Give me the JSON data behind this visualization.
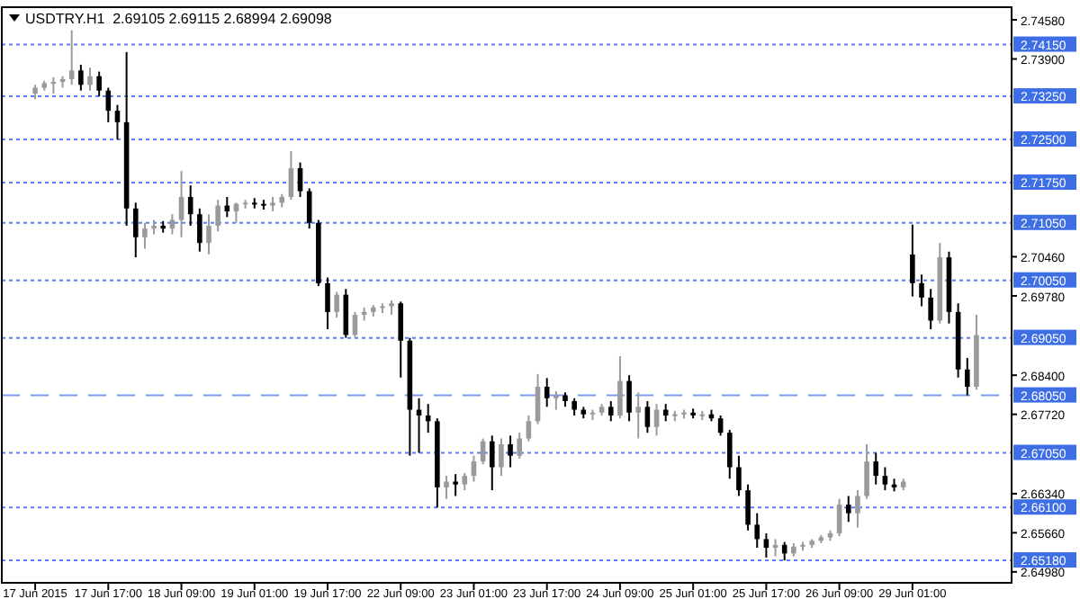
{
  "chart_data": {
    "type": "candlestick",
    "title": "USDTRY.H1  2.69105 2.69115 2.68994 2.69098",
    "categories": [
      "17 Jun 2015",
      null,
      null,
      null,
      null,
      null,
      null,
      null,
      "17 Jun 17:00",
      null,
      null,
      null,
      null,
      null,
      null,
      null,
      "18 Jun 09:00",
      null,
      null,
      null,
      null,
      null,
      null,
      null,
      "19 Jun 01:00",
      null,
      null,
      null,
      null,
      null,
      null,
      null,
      "19 Jun 17:00",
      null,
      null,
      null,
      null,
      null,
      null,
      null,
      "22 Jun 09:00",
      null,
      null,
      null,
      null,
      null,
      null,
      null,
      "23 Jun 01:00",
      null,
      null,
      null,
      null,
      null,
      null,
      null,
      "23 Jun 17:00",
      null,
      null,
      null,
      null,
      null,
      null,
      null,
      "24 Jun 09:00",
      null,
      null,
      null,
      null,
      null,
      null,
      null,
      "25 Jun 01:00",
      null,
      null,
      null,
      null,
      null,
      null,
      null,
      "25 Jun 17:00",
      null,
      null,
      null,
      null,
      null,
      null,
      null,
      "26 Jun 09:00",
      null,
      null,
      null,
      null,
      null,
      null,
      null,
      "29 Jun 01:00",
      null,
      null,
      null,
      null,
      null,
      null,
      null
    ],
    "ohlc": [
      [
        2.733,
        2.7345,
        2.732,
        2.734
      ],
      [
        2.734,
        2.7352,
        2.7335,
        2.7348
      ],
      [
        2.7348,
        2.7358,
        2.733,
        2.735
      ],
      [
        2.735,
        2.736,
        2.734,
        2.7355
      ],
      [
        2.7355,
        2.744,
        2.7345,
        2.737
      ],
      [
        2.737,
        2.738,
        2.7335,
        2.7345
      ],
      [
        2.7345,
        2.7375,
        2.7335,
        2.736
      ],
      [
        2.736,
        2.7368,
        2.7325,
        2.7335
      ],
      [
        2.7335,
        2.734,
        2.728,
        2.73
      ],
      [
        2.73,
        2.731,
        2.725,
        2.728
      ],
      [
        2.728,
        2.7402,
        2.71,
        2.713
      ],
      [
        2.713,
        2.714,
        2.7045,
        2.708
      ],
      [
        2.708,
        2.7105,
        2.706,
        2.7095
      ],
      [
        2.7095,
        2.711,
        2.7085,
        2.71
      ],
      [
        2.71,
        2.7108,
        2.7088,
        2.7095
      ],
      [
        2.7095,
        2.712,
        2.7085,
        2.711
      ],
      [
        2.711,
        2.7195,
        2.708,
        2.715
      ],
      [
        2.715,
        2.717,
        2.71,
        2.712
      ],
      [
        2.712,
        2.713,
        2.7055,
        2.707
      ],
      [
        2.707,
        2.712,
        2.705,
        2.71
      ],
      [
        2.71,
        2.7145,
        2.709,
        2.7135
      ],
      [
        2.7135,
        2.715,
        2.7115,
        2.7125
      ],
      [
        2.7125,
        2.714,
        2.7105,
        2.7138
      ],
      [
        2.7138,
        2.7145,
        2.713,
        2.714
      ],
      [
        2.714,
        2.7148,
        2.713,
        2.7138
      ],
      [
        2.7138,
        2.7145,
        2.7128,
        2.7135
      ],
      [
        2.7135,
        2.715,
        2.7125,
        2.714
      ],
      [
        2.714,
        2.7155,
        2.7132,
        2.715
      ],
      [
        2.715,
        2.723,
        2.7145,
        2.72
      ],
      [
        2.72,
        2.721,
        2.715,
        2.716
      ],
      [
        2.716,
        2.7165,
        2.7095,
        2.7105
      ],
      [
        2.7105,
        2.711,
        2.6995,
        2.7
      ],
      [
        2.7,
        2.701,
        2.692,
        2.695
      ],
      [
        2.695,
        2.6985,
        2.694,
        2.698
      ],
      [
        2.698,
        2.699,
        2.6905,
        2.691
      ],
      [
        2.691,
        2.695,
        2.6905,
        2.6945
      ],
      [
        2.6945,
        2.6958,
        2.6935,
        2.695
      ],
      [
        2.695,
        2.6962,
        2.6942,
        2.6958
      ],
      [
        2.6958,
        2.6965,
        2.6948,
        2.696
      ],
      [
        2.696,
        2.697,
        2.6945,
        2.6965
      ],
      [
        2.6965,
        2.6968,
        2.6836,
        2.69
      ],
      [
        2.69,
        2.6905,
        2.67,
        2.678
      ],
      [
        2.678,
        2.68,
        2.6705,
        2.677
      ],
      [
        2.677,
        2.679,
        2.674,
        2.676
      ],
      [
        2.676,
        2.6765,
        2.661,
        2.6645
      ],
      [
        2.6645,
        2.6665,
        2.6625,
        2.6655
      ],
      [
        2.6655,
        2.6668,
        2.663,
        2.665
      ],
      [
        2.665,
        2.667,
        2.664,
        2.6665
      ],
      [
        2.6665,
        2.67,
        2.6655,
        2.669
      ],
      [
        2.669,
        2.673,
        2.6685,
        2.6725
      ],
      [
        2.6725,
        2.6735,
        2.664,
        2.668
      ],
      [
        2.668,
        2.673,
        2.6665,
        2.672
      ],
      [
        2.672,
        2.6735,
        2.668,
        2.67
      ],
      [
        2.67,
        2.674,
        2.6695,
        2.673
      ],
      [
        2.673,
        2.677,
        2.6725,
        2.676
      ],
      [
        2.676,
        2.6842,
        2.6755,
        2.682
      ],
      [
        2.682,
        2.6835,
        2.6785,
        2.68
      ],
      [
        2.68,
        2.6812,
        2.678,
        2.6805
      ],
      [
        2.6805,
        2.681,
        2.6785,
        2.6795
      ],
      [
        2.6795,
        2.68,
        2.677,
        2.678
      ],
      [
        2.678,
        2.6785,
        2.6765,
        2.6772
      ],
      [
        2.6772,
        2.678,
        2.6762,
        2.6775
      ],
      [
        2.6775,
        2.679,
        2.677,
        2.6785
      ],
      [
        2.6785,
        2.6795,
        2.676,
        2.677
      ],
      [
        2.677,
        2.6873,
        2.6765,
        2.683
      ],
      [
        2.683,
        2.684,
        2.676,
        2.6775
      ],
      [
        2.6775,
        2.681,
        2.673,
        2.6785
      ],
      [
        2.6785,
        2.6795,
        2.674,
        2.675
      ],
      [
        2.675,
        2.679,
        2.6735,
        2.678
      ],
      [
        2.678,
        2.679,
        2.676,
        2.677
      ],
      [
        2.677,
        2.6778,
        2.676,
        2.6772
      ],
      [
        2.6772,
        2.678,
        2.6765,
        2.6775
      ],
      [
        2.6775,
        2.6782,
        2.6765,
        2.677
      ],
      [
        2.677,
        2.6778,
        2.6762,
        2.6772
      ],
      [
        2.6772,
        2.678,
        2.676,
        2.6765
      ],
      [
        2.6765,
        2.677,
        2.6735,
        2.674
      ],
      [
        2.674,
        2.6745,
        2.666,
        2.668
      ],
      [
        2.668,
        2.67,
        2.663,
        2.664
      ],
      [
        2.664,
        2.665,
        2.657,
        2.658
      ],
      [
        2.658,
        2.66,
        2.654,
        2.6555
      ],
      [
        2.6555,
        2.6565,
        2.6523,
        2.654
      ],
      [
        2.654,
        2.6555,
        2.6525,
        2.6545
      ],
      [
        2.6545,
        2.655,
        2.6518,
        2.653
      ],
      [
        2.653,
        2.6548,
        2.6525,
        2.6542
      ],
      [
        2.6542,
        2.655,
        2.6535,
        2.6545
      ],
      [
        2.6545,
        2.6555,
        2.654,
        2.6552
      ],
      [
        2.6552,
        2.6562,
        2.6548,
        2.6558
      ],
      [
        2.6558,
        2.657,
        2.6552,
        2.6565
      ],
      [
        2.6565,
        2.6625,
        2.656,
        2.6615
      ],
      [
        2.6615,
        2.663,
        2.6585,
        2.66
      ],
      [
        2.66,
        2.664,
        2.6575,
        2.663
      ],
      [
        2.663,
        2.672,
        2.6625,
        2.669
      ],
      [
        2.669,
        2.6705,
        2.665,
        2.6665
      ],
      [
        2.6665,
        2.668,
        2.664,
        2.665
      ],
      [
        2.665,
        2.666,
        2.6638,
        2.6645
      ],
      [
        2.6645,
        2.666,
        2.664,
        2.6655
      ],
      [
        2.705,
        2.7102,
        2.6977,
        2.7
      ],
      [
        2.7,
        2.7015,
        2.696,
        2.6975
      ],
      [
        2.6975,
        2.699,
        2.692,
        2.6935
      ],
      [
        2.6935,
        2.707,
        2.693,
        2.7045
      ],
      [
        2.7045,
        2.7055,
        2.693,
        2.695
      ],
      [
        2.695,
        2.6965,
        2.6836,
        2.685
      ],
      [
        2.685,
        2.687,
        2.6805,
        2.682
      ],
      [
        2.682,
        2.6945,
        2.6815,
        2.69098
      ]
    ],
    "ylim": [
      2.6479,
      2.748
    ],
    "yticks": [
      {
        "value": 2.7458,
        "label": "2.74580"
      },
      {
        "value": 2.739,
        "label": "2.73900"
      },
      {
        "value": 2.7046,
        "label": "2.70460"
      },
      {
        "value": 2.6978,
        "label": "2.69780"
      },
      {
        "value": 2.684,
        "label": "2.68400"
      },
      {
        "value": 2.6772,
        "label": "2.67720"
      },
      {
        "value": 2.6634,
        "label": "2.66340"
      },
      {
        "value": 2.6566,
        "label": "2.65660"
      },
      {
        "value": 2.6498,
        "label": "2.64980"
      }
    ],
    "grid": false,
    "ref_lines": [
      {
        "axis": "y",
        "value": 2.7415,
        "label": "2.74150",
        "color": "#5b7ff2",
        "line_style": "dotted"
      },
      {
        "axis": "y",
        "value": 2.7325,
        "label": "2.73250",
        "color": "#5b7ff2",
        "line_style": "dotted"
      },
      {
        "axis": "y",
        "value": 2.725,
        "label": "2.72500",
        "color": "#5b7ff2",
        "line_style": "dotted"
      },
      {
        "axis": "y",
        "value": 2.7175,
        "label": "2.71750",
        "color": "#5b7ff2",
        "line_style": "dotted"
      },
      {
        "axis": "y",
        "value": 2.7105,
        "label": "2.71050",
        "color": "#5b7ff2",
        "line_style": "dotted"
      },
      {
        "axis": "y",
        "value": 2.7005,
        "label": "2.70050",
        "color": "#5b7ff2",
        "line_style": "dotted"
      },
      {
        "axis": "y",
        "value": 2.6905,
        "label": "2.69050",
        "color": "#5b7ff2",
        "line_style": "dotted"
      },
      {
        "axis": "y",
        "value": 2.6805,
        "label": "2.68050",
        "color": "#7b9cf2",
        "line_style": "dashed"
      },
      {
        "axis": "y",
        "value": 2.6705,
        "label": "2.67050",
        "color": "#5b7ff2",
        "line_style": "dotted"
      },
      {
        "axis": "y",
        "value": 2.661,
        "label": "2.66100",
        "color": "#5b7ff2",
        "line_style": "dotted"
      },
      {
        "axis": "y",
        "value": 2.6518,
        "label": "2.65180",
        "color": "#5b7ff2",
        "line_style": "dotted"
      }
    ]
  }
}
